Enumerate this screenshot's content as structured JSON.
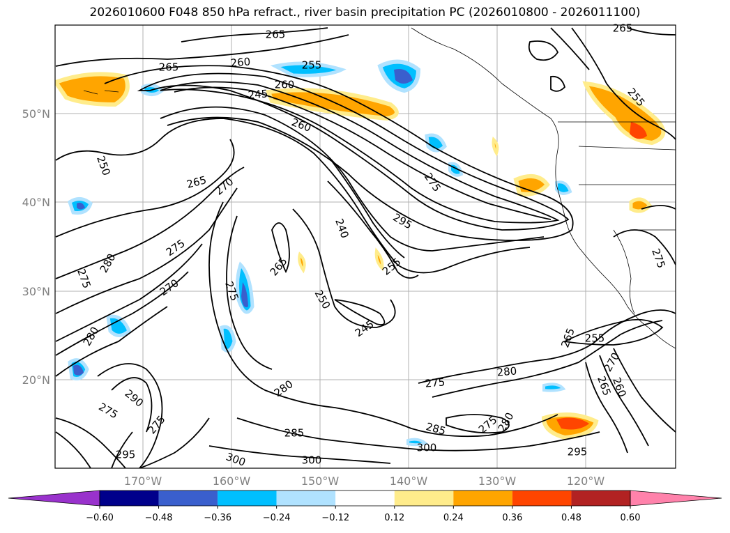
{
  "title": "2026010600 F048 850 hPa refract., river basin precipitation PC (2026010800 - 2026011100)",
  "lat_labels": [
    "50°N",
    "40°N",
    "30°N",
    "20°N"
  ],
  "lon_labels": [
    "170°W",
    "160°W",
    "150°W",
    "140°W",
    "130°W",
    "120°W"
  ],
  "contour_labels": [
    "265",
    "260",
    "255",
    "265",
    "260",
    "245",
    "260",
    "250",
    "265",
    "270",
    "275",
    "280",
    "275",
    "270",
    "265",
    "275",
    "295",
    "275",
    "240",
    "255",
    "250",
    "245",
    "280",
    "275",
    "290",
    "275",
    "280",
    "285",
    "295",
    "300",
    "300",
    "285",
    "275",
    "280",
    "275",
    "280",
    "300",
    "295",
    "265",
    "255",
    "270",
    "265",
    "260",
    "275",
    "255",
    "265"
  ],
  "colorbar": {
    "ticks": [
      "−0.60",
      "−0.48",
      "−0.36",
      "−0.24",
      "−0.12",
      "0.12",
      "0.24",
      "0.36",
      "0.48",
      "0.60"
    ],
    "colors": [
      "#9932cc",
      "#00008b",
      "#3a5fcd",
      "#00bfff",
      "#b0e2ff",
      "#ffffff",
      "#ffec8b",
      "#ffa500",
      "#ff4500",
      "#b22222",
      "#ff82ab"
    ]
  }
}
